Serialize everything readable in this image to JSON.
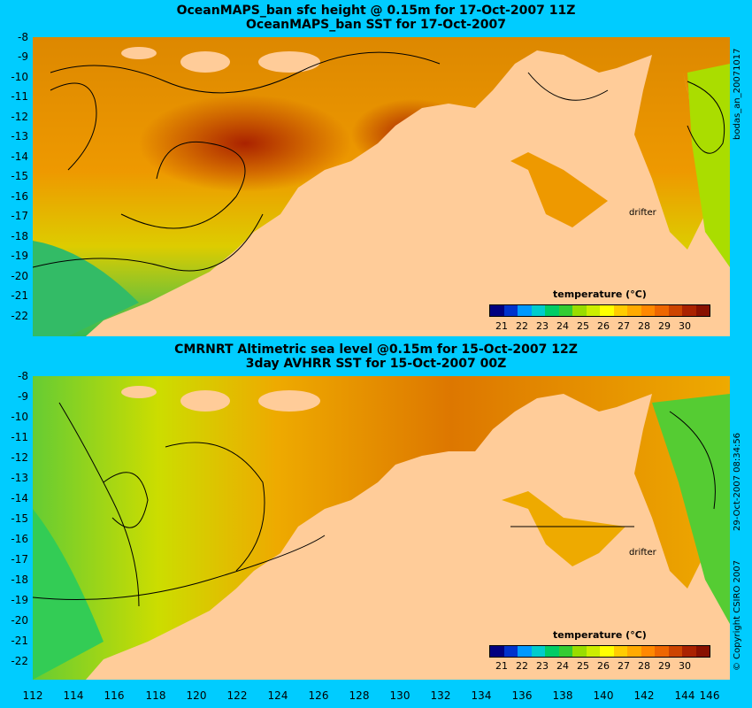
{
  "panels": [
    {
      "title_line1": "OceanMAPS_ban sfc height @ 0.15m for 17-Oct-2007 11Z",
      "title_line2": "OceanMAPS_ban SST for 17-Oct-2007",
      "side_label": "bodas_an_20071017"
    },
    {
      "title_line1": "CMRNRT Altimetric sea level  @0.15m  for 15-Oct-2007 12Z",
      "title_line2": "3day AVHRR SST for 15-Oct-2007 00Z",
      "side_label": "29-Oct-2007 08:34:56",
      "copyright": "© Copyright CSIRO 2007"
    }
  ],
  "y_ticks": [
    "-8",
    "-9",
    "-10",
    "-11",
    "-12",
    "-13",
    "-14",
    "-15",
    "-16",
    "-17",
    "-18",
    "-19",
    "-20",
    "-21",
    "-22"
  ],
  "x_ticks": [
    "112",
    "114",
    "116",
    "118",
    "120",
    "122",
    "124",
    "126",
    "128",
    "130",
    "132",
    "134",
    "136",
    "138",
    "140",
    "142",
    "144",
    "146"
  ],
  "legend": {
    "title": "temperature (°C)",
    "ticks": [
      "21",
      "22",
      "23",
      "24",
      "25",
      "26",
      "27",
      "28",
      "29",
      "30"
    ],
    "colors": [
      "#000080",
      "#0033cc",
      "#0099ff",
      "#00cccc",
      "#00cc66",
      "#33cc33",
      "#99dd00",
      "#ccee00",
      "#ffff00",
      "#ffcc00",
      "#ffaa00",
      "#ff8800",
      "#ee6600",
      "#cc4400",
      "#aa2200",
      "#881100"
    ]
  },
  "annotation": "drifter",
  "colors": {
    "background": "#00ccff",
    "land": "#ffcc99"
  }
}
